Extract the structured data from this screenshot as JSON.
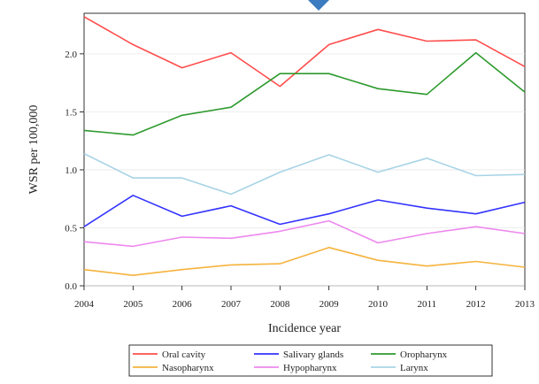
{
  "chart_data": {
    "type": "line",
    "title": "",
    "xlabel": "Incidence year",
    "ylabel": "WSR per 100,000",
    "x": [
      2004,
      2005,
      2006,
      2007,
      2008,
      2009,
      2010,
      2011,
      2012,
      2013
    ],
    "xlim": [
      2004,
      2013
    ],
    "ylim": [
      0.0,
      2.35
    ],
    "yticks": [
      "0.0",
      "0.5",
      "1.0",
      "1.5",
      "2.0"
    ],
    "grid": "horizontal",
    "legend_position": "bottom",
    "series": [
      {
        "name": "Oral cavity",
        "color": "#ff4d4d",
        "values": [
          2.32,
          2.08,
          1.88,
          2.01,
          1.72,
          2.08,
          2.21,
          2.11,
          2.12,
          1.89
        ]
      },
      {
        "name": "Salivary glands",
        "color": "#3333ff",
        "values": [
          0.51,
          0.78,
          0.6,
          0.69,
          0.53,
          0.62,
          0.74,
          0.67,
          0.62,
          0.72
        ]
      },
      {
        "name": "Oropharynx",
        "color": "#2e9a2e",
        "values": [
          1.34,
          1.3,
          1.47,
          1.54,
          1.83,
          1.83,
          1.7,
          1.65,
          2.01,
          1.67
        ]
      },
      {
        "name": "Nasopharynx",
        "color": "#f5b33d",
        "values": [
          0.14,
          0.09,
          0.14,
          0.18,
          0.19,
          0.33,
          0.22,
          0.17,
          0.21,
          0.16
        ]
      },
      {
        "name": "Hypopharynx",
        "color": "#ee88ee",
        "values": [
          0.38,
          0.34,
          0.42,
          0.41,
          0.47,
          0.56,
          0.37,
          0.45,
          0.51,
          0.45
        ]
      },
      {
        "name": "Larynx",
        "color": "#a8d4e6",
        "values": [
          1.14,
          0.93,
          0.93,
          0.79,
          0.98,
          1.13,
          0.98,
          1.1,
          0.95,
          0.96
        ]
      }
    ]
  },
  "decor": {
    "marker_icon": "arrow-down-icon",
    "marker_color": "#3b7bbf"
  }
}
